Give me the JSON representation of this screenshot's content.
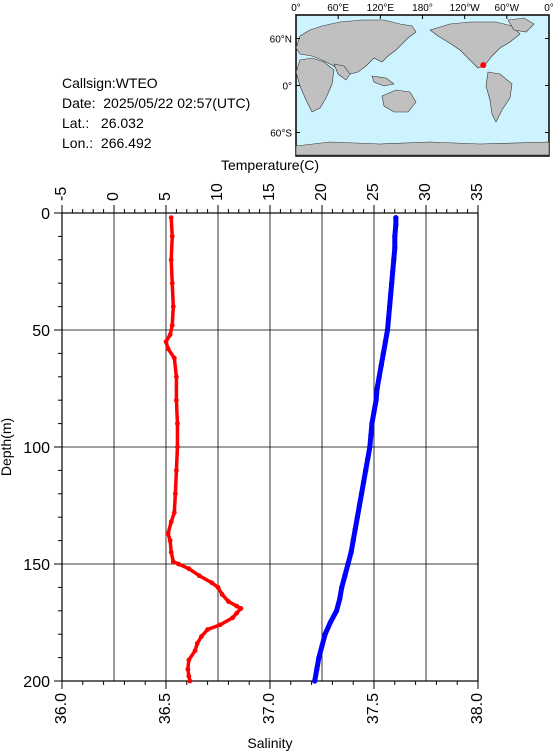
{
  "header": {
    "callsign": "Callsign:WTEO",
    "date": "Date:  2025/05/22 02:57(UTC)",
    "lat": "Lat.:   26.032",
    "lon": "Lon.:  266.492"
  },
  "map": {
    "top_labels": [
      "0°",
      "60°E",
      "120°E",
      "180°",
      "120°W",
      "60°W",
      "0°"
    ],
    "left_labels": [
      "60°N",
      "0°",
      "60°S"
    ],
    "ocean_color": "#cdf3ff",
    "land_color": "#c0c0c0",
    "marker_color": "#ff0000",
    "station": {
      "lat": 26.032,
      "lon": 266.492
    }
  },
  "chart_data": {
    "type": "line",
    "x_top_label": "Temperature(C)",
    "x_bottom_label": "Salinity",
    "ylabel": "Depth(m)",
    "ylim": [
      0,
      200
    ],
    "y_ticks": [
      "0",
      "50",
      "100",
      "150",
      "200"
    ],
    "temp_lim": [
      -5,
      35
    ],
    "temp_ticks": [
      "-5",
      "0",
      "5",
      "10",
      "15",
      "20",
      "25",
      "30",
      "35"
    ],
    "sal_lim": [
      36.0,
      38.0
    ],
    "sal_ticks": [
      "36.0",
      "36.5",
      "37.0",
      "37.5",
      "38.0"
    ],
    "grid": true,
    "series": [
      {
        "name": "",
        "axis": "temperature",
        "color": "#0000ff",
        "points": [
          [
            27.1,
            2
          ],
          [
            27.1,
            5
          ],
          [
            27.0,
            10
          ],
          [
            27.0,
            15
          ],
          [
            26.9,
            20
          ],
          [
            26.8,
            25
          ],
          [
            26.7,
            30
          ],
          [
            26.6,
            35
          ],
          [
            26.5,
            40
          ],
          [
            26.4,
            45
          ],
          [
            26.3,
            50
          ],
          [
            26.1,
            55
          ],
          [
            25.9,
            60
          ],
          [
            25.7,
            65
          ],
          [
            25.5,
            70
          ],
          [
            25.3,
            75
          ],
          [
            25.2,
            80
          ],
          [
            25.0,
            85
          ],
          [
            24.8,
            90
          ],
          [
            24.7,
            95
          ],
          [
            24.6,
            100
          ],
          [
            24.4,
            105
          ],
          [
            24.2,
            110
          ],
          [
            24.0,
            115
          ],
          [
            23.8,
            120
          ],
          [
            23.6,
            125
          ],
          [
            23.4,
            130
          ],
          [
            23.2,
            135
          ],
          [
            23.0,
            140
          ],
          [
            22.8,
            145
          ],
          [
            22.5,
            150
          ],
          [
            22.2,
            155
          ],
          [
            21.9,
            160
          ],
          [
            21.7,
            165
          ],
          [
            21.4,
            170
          ],
          [
            20.8,
            175
          ],
          [
            20.3,
            180
          ],
          [
            20.0,
            185
          ],
          [
            19.7,
            190
          ],
          [
            19.5,
            195
          ],
          [
            19.3,
            200
          ]
        ]
      },
      {
        "name": "",
        "axis": "salinity",
        "color": "#ff0000",
        "points": [
          [
            36.525,
            2
          ],
          [
            36.53,
            10
          ],
          [
            36.525,
            20
          ],
          [
            36.53,
            30
          ],
          [
            36.535,
            40
          ],
          [
            36.53,
            48
          ],
          [
            36.52,
            52
          ],
          [
            36.5,
            55
          ],
          [
            36.51,
            58
          ],
          [
            36.54,
            62
          ],
          [
            36.55,
            70
          ],
          [
            36.55,
            80
          ],
          [
            36.555,
            90
          ],
          [
            36.555,
            100
          ],
          [
            36.55,
            110
          ],
          [
            36.545,
            120
          ],
          [
            36.54,
            128
          ],
          [
            36.525,
            132
          ],
          [
            36.51,
            137
          ],
          [
            36.52,
            140
          ],
          [
            36.525,
            145
          ],
          [
            36.535,
            149
          ],
          [
            36.56,
            150
          ],
          [
            36.61,
            152
          ],
          [
            36.66,
            155
          ],
          [
            36.72,
            158
          ],
          [
            36.75,
            160
          ],
          [
            36.77,
            163
          ],
          [
            36.8,
            166
          ],
          [
            36.84,
            168
          ],
          [
            36.86,
            169
          ],
          [
            36.84,
            171
          ],
          [
            36.82,
            173
          ],
          [
            36.76,
            176
          ],
          [
            36.7,
            178
          ],
          [
            36.67,
            181
          ],
          [
            36.65,
            184
          ],
          [
            36.64,
            187
          ],
          [
            36.61,
            191
          ],
          [
            36.605,
            195
          ],
          [
            36.61,
            198
          ],
          [
            36.615,
            200
          ]
        ]
      }
    ]
  }
}
